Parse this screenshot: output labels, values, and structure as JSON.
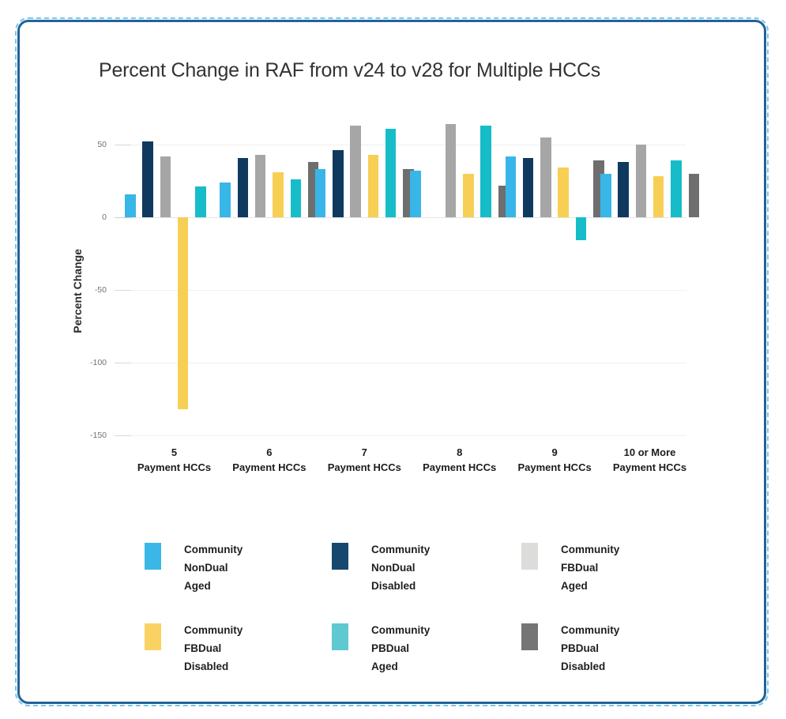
{
  "colors": {
    "frame_border": "#236397",
    "selection_dash": "#74c7ef"
  },
  "chart_data": {
    "type": "bar",
    "title": "Percent Change in RAF from v24 to v28 for Multiple HCCs",
    "ylabel": "Percent Change",
    "yticks": [
      50,
      0,
      -50,
      -100,
      -150
    ],
    "ylim": [
      -157,
      67
    ],
    "grid": true,
    "legend_position": "bottom",
    "categories": [
      "5 Payment HCCs",
      "6 Payment HCCs",
      "7 Payment HCCs",
      "8 Payment HCCs",
      "9 Payment HCCs",
      "10 or More Payment HCCs"
    ],
    "category_lines": [
      [
        "5",
        "Payment HCCs"
      ],
      [
        "6",
        "Payment HCCs"
      ],
      [
        "7",
        "Payment HCCs"
      ],
      [
        "8",
        "Payment HCCs"
      ],
      [
        "9",
        "Payment HCCs"
      ],
      [
        "10 or More",
        "Payment HCCs"
      ]
    ],
    "series": [
      {
        "name": "Community NonDual Aged",
        "color": "#38b6e8",
        "values": [
          16,
          24,
          33,
          32,
          42,
          30
        ]
      },
      {
        "name": "Community NonDual Disabled",
        "color": "#10395f",
        "values": [
          52,
          41,
          46,
          0,
          41,
          38
        ]
      },
      {
        "name": "Community FBDual Aged",
        "color": "#a6a6a6",
        "values": [
          42,
          43,
          63,
          64,
          55,
          50
        ]
      },
      {
        "name": "Community FBDual Disabled",
        "color": "#f8cf55",
        "values": [
          -132,
          31,
          43,
          30,
          34,
          28
        ]
      },
      {
        "name": "Community PBDual Aged",
        "color": "#17bcc9",
        "values": [
          21,
          26,
          61,
          63,
          -16,
          39
        ]
      },
      {
        "name": "Community PBDual Disabled",
        "color": "#6e6e6e",
        "values": [
          0,
          38,
          33,
          22,
          39,
          30
        ]
      }
    ]
  },
  "legend": {
    "items": [
      {
        "lines": [
          "Community",
          "NonDual",
          "Aged"
        ],
        "color": "#3ab7e6"
      },
      {
        "lines": [
          "Community",
          "NonDual",
          "Disabled"
        ],
        "color": "#16486f"
      },
      {
        "lines": [
          "Community",
          "FBDual",
          "Aged"
        ],
        "color": "#dcdcda"
      },
      {
        "lines": [
          "Community",
          "FBDual",
          "Disabled"
        ],
        "color": "#fad163"
      },
      {
        "lines": [
          "Community",
          "PBDual",
          "Aged"
        ],
        "color": "#5fc8d0"
      },
      {
        "lines": [
          "Community",
          "PBDual",
          "Disabled"
        ],
        "color": "#757575"
      }
    ]
  }
}
